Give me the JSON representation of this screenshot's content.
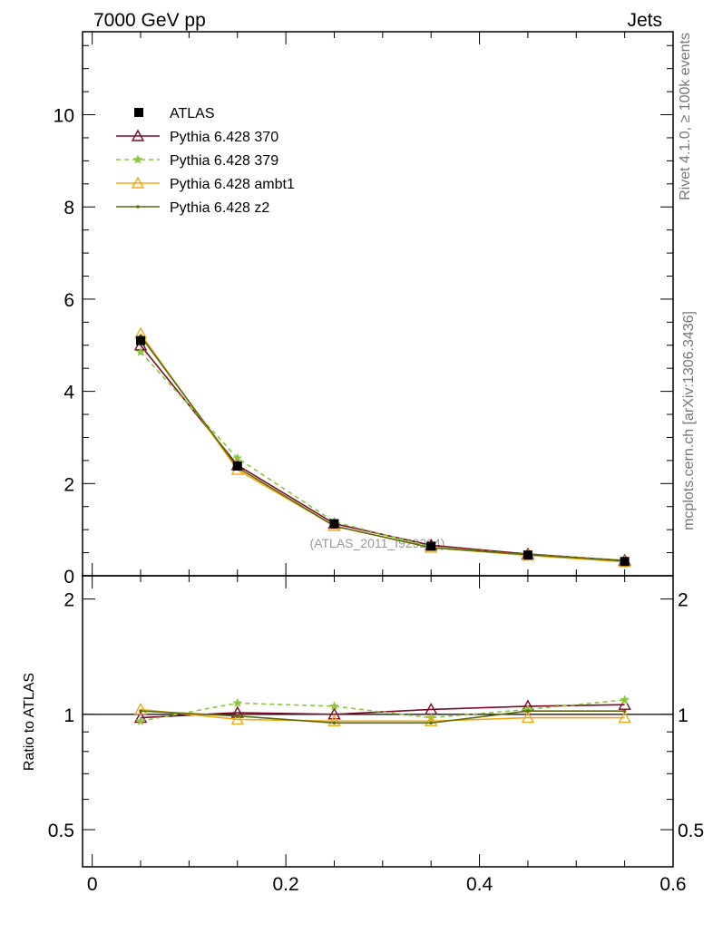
{
  "header": {
    "left_title": "7000 GeV pp",
    "right_title": "Jets"
  },
  "side_labels": {
    "rivet": "Rivet 4.1.0, ≥ 100k events",
    "mcplots": "mcplots.cern.ch [arXiv:1306.3436]"
  },
  "analysis_label": "(ATLAS_2011_I929284)",
  "ratio_ylabel": "Ratio to ATLAS",
  "chart_data": [
    {
      "type": "line",
      "panel": "main",
      "x": [
        0.05,
        0.15,
        0.25,
        0.35,
        0.45,
        0.55
      ],
      "xlim": [
        -0.01,
        0.6
      ],
      "ylim": [
        0,
        11.8
      ],
      "yticks": [
        0,
        2,
        4,
        6,
        8,
        10
      ],
      "ytick_labels": [
        "0",
        "2",
        "4",
        "6",
        "8",
        "10"
      ],
      "legend_position": "top-left",
      "series": [
        {
          "name": "ATLAS",
          "style": "data",
          "color": "#000000",
          "values": [
            5.1,
            2.38,
            1.13,
            0.64,
            0.45,
            0.31
          ],
          "errors": [
            0.08,
            0.05,
            0.03,
            0.02,
            0.02,
            0.01
          ]
        },
        {
          "name": "Pythia 6.428 370",
          "style": "triangle",
          "color": "#7b0b25",
          "values": [
            5.0,
            2.4,
            1.13,
            0.66,
            0.47,
            0.33
          ]
        },
        {
          "name": "Pythia 6.428 379",
          "style": "star-dashed",
          "color": "#8cc63e",
          "values": [
            4.85,
            2.55,
            1.17,
            0.63,
            0.46,
            0.34
          ]
        },
        {
          "name": "Pythia 6.428 ambt1",
          "style": "triangle",
          "color": "#f0a818",
          "values": [
            5.25,
            2.3,
            1.08,
            0.61,
            0.44,
            0.3
          ]
        },
        {
          "name": "Pythia 6.428 z2",
          "style": "dot",
          "color": "#5b6b0c",
          "values": [
            5.2,
            2.35,
            1.08,
            0.61,
            0.46,
            0.32
          ]
        }
      ]
    },
    {
      "type": "line",
      "panel": "ratio",
      "x": [
        0.05,
        0.15,
        0.25,
        0.35,
        0.45,
        0.55
      ],
      "xlim": [
        -0.01,
        0.6
      ],
      "ylim": [
        0.4,
        2.3
      ],
      "yticks": [
        0.5,
        1,
        2
      ],
      "ytick_labels": [
        "0.5",
        "1",
        "2"
      ],
      "xticks": [
        0,
        0.2,
        0.4,
        0.6
      ],
      "xtick_labels": [
        "0",
        "0.2",
        "0.4",
        "0.6"
      ],
      "reference": 1,
      "series": [
        {
          "name": "Pythia 6.428 370",
          "style": "triangle",
          "color": "#7b0b25",
          "values": [
            0.98,
            1.01,
            1.0,
            1.03,
            1.05,
            1.06
          ]
        },
        {
          "name": "Pythia 6.428 379",
          "style": "star-dashed",
          "color": "#8cc63e",
          "values": [
            0.96,
            1.07,
            1.05,
            0.98,
            1.03,
            1.09
          ]
        },
        {
          "name": "Pythia 6.428 ambt1",
          "style": "triangle",
          "color": "#f0a818",
          "values": [
            1.03,
            0.97,
            0.96,
            0.96,
            0.98,
            0.98
          ]
        },
        {
          "name": "Pythia 6.428 z2",
          "style": "dot",
          "color": "#5b6b0c",
          "values": [
            1.02,
            0.99,
            0.95,
            0.95,
            1.02,
            1.02
          ]
        }
      ]
    }
  ]
}
